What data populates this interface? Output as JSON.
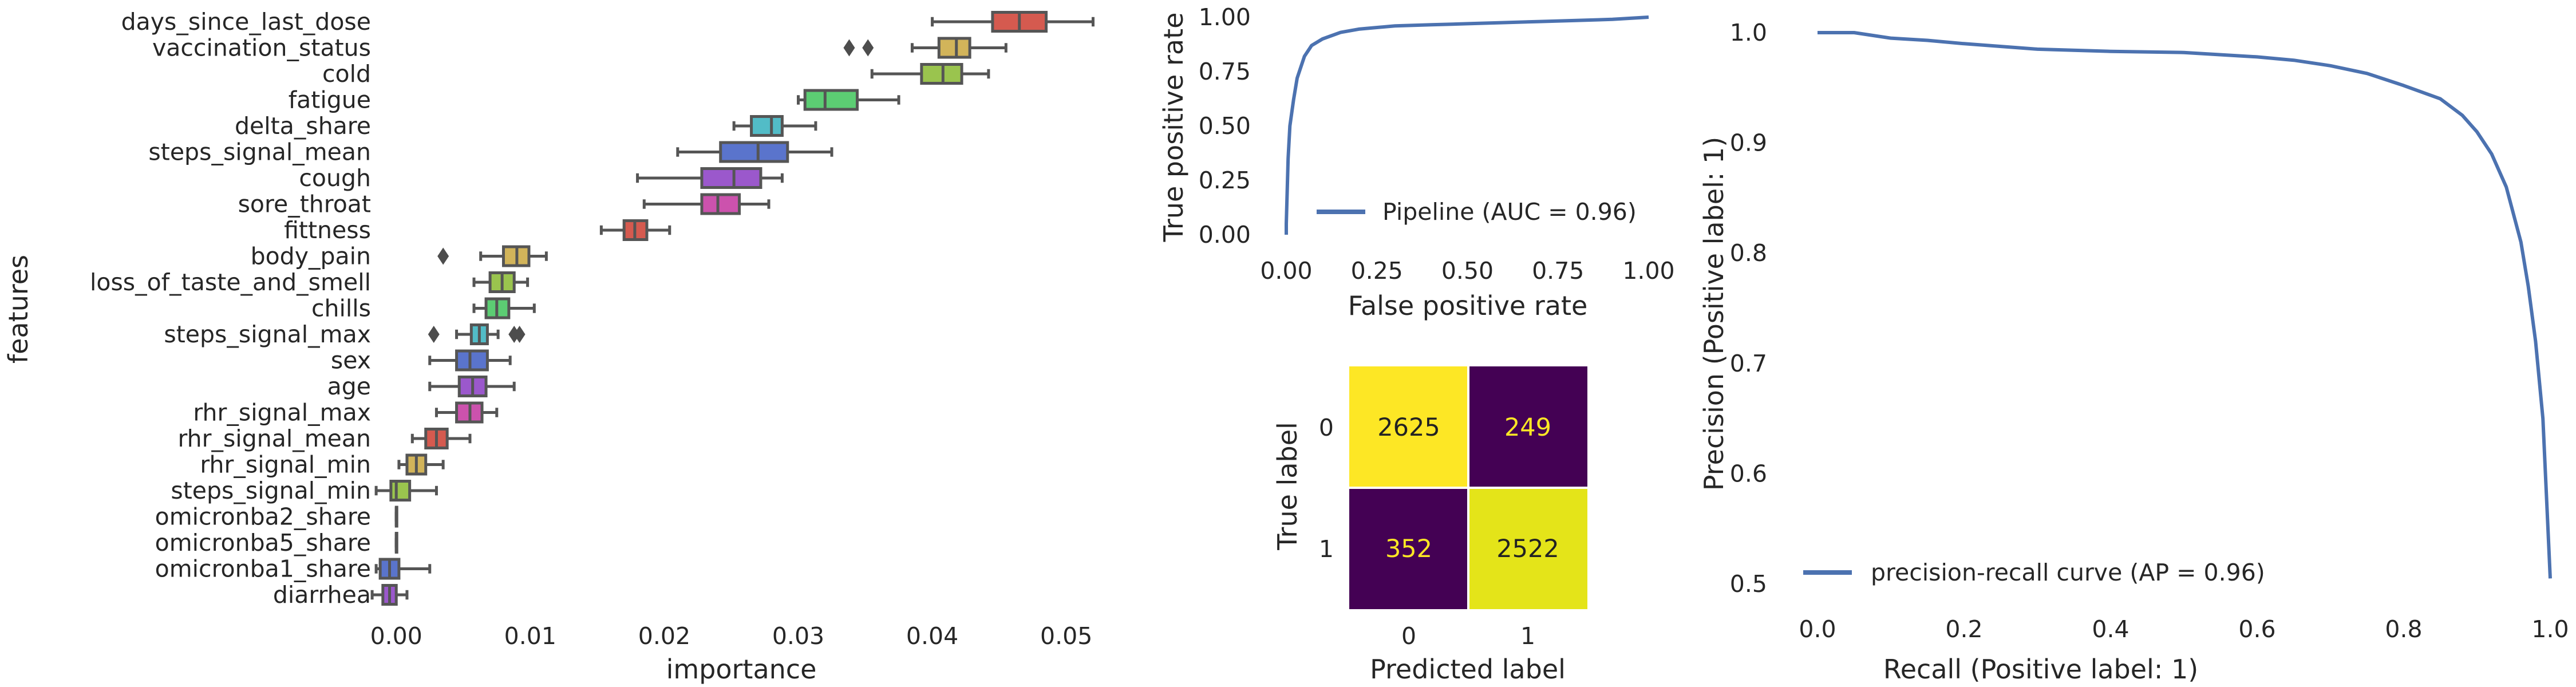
{
  "chart_data": [
    {
      "type": "box",
      "xlabel": "importance",
      "ylabel": "features",
      "xlim": [
        -0.003,
        0.0545
      ],
      "xticks": [
        "0.00",
        "0.01",
        "0.02",
        "0.03",
        "0.04",
        "0.05"
      ],
      "grid": false,
      "categories": [
        "days_since_last_dose",
        "vaccination_status",
        "cold",
        "fatigue",
        "delta_share",
        "steps_signal_mean",
        "cough",
        "sore_throat",
        "fittness",
        "body_pain",
        "loss_of_taste_and_smell",
        "chills",
        "steps_signal_max",
        "sex",
        "age",
        "rhr_signal_max",
        "rhr_signal_mean",
        "rhr_signal_min",
        "steps_signal_min",
        "omicronba2_share",
        "omicronba5_share",
        "omicronba1_share",
        "diarrhea"
      ],
      "boxes": [
        {
          "whislo": 0.04,
          "q1": 0.0445,
          "med": 0.0465,
          "q3": 0.0485,
          "whishi": 0.052,
          "fliers": [],
          "color": "#d55a4f"
        },
        {
          "whislo": 0.0385,
          "q1": 0.0405,
          "med": 0.0418,
          "q3": 0.0428,
          "whishi": 0.0455,
          "fliers": [
            0.0338,
            0.0352
          ],
          "color": "#d2b45a"
        },
        {
          "whislo": 0.0355,
          "q1": 0.0392,
          "med": 0.0408,
          "q3": 0.0422,
          "whishi": 0.0442,
          "fliers": [],
          "color": "#9ac44e"
        },
        {
          "whislo": 0.03,
          "q1": 0.0305,
          "med": 0.032,
          "q3": 0.0344,
          "whishi": 0.0375,
          "fliers": [],
          "color": "#5ccd73"
        },
        {
          "whislo": 0.0252,
          "q1": 0.0265,
          "med": 0.028,
          "q3": 0.0288,
          "whishi": 0.0313,
          "fliers": [],
          "color": "#52bcc7"
        },
        {
          "whislo": 0.021,
          "q1": 0.0242,
          "med": 0.027,
          "q3": 0.0292,
          "whishi": 0.0325,
          "fliers": [],
          "color": "#5a74cc"
        },
        {
          "whislo": 0.018,
          "q1": 0.0228,
          "med": 0.0252,
          "q3": 0.0272,
          "whishi": 0.0288,
          "fliers": [],
          "color": "#9b58cc"
        },
        {
          "whislo": 0.0185,
          "q1": 0.0228,
          "med": 0.024,
          "q3": 0.0256,
          "whishi": 0.0278,
          "fliers": [],
          "color": "#cc52ad"
        },
        {
          "whislo": 0.0153,
          "q1": 0.017,
          "med": 0.0178,
          "q3": 0.0187,
          "whishi": 0.0204,
          "fliers": [],
          "color": "#d55a4f"
        },
        {
          "whislo": 0.0063,
          "q1": 0.008,
          "med": 0.009,
          "q3": 0.0099,
          "whishi": 0.0112,
          "fliers": [
            0.0035
          ],
          "color": "#d2b45a"
        },
        {
          "whislo": 0.0058,
          "q1": 0.007,
          "med": 0.0079,
          "q3": 0.0088,
          "whishi": 0.0098,
          "fliers": [],
          "color": "#9ac44e"
        },
        {
          "whislo": 0.0058,
          "q1": 0.0067,
          "med": 0.0075,
          "q3": 0.0084,
          "whishi": 0.0103,
          "fliers": [],
          "color": "#5ccd73"
        },
        {
          "whislo": 0.0045,
          "q1": 0.0056,
          "med": 0.0062,
          "q3": 0.0068,
          "whishi": 0.0076,
          "fliers": [
            0.0028,
            0.0088,
            0.0092
          ],
          "color": "#52bcc7"
        },
        {
          "whislo": 0.0025,
          "q1": 0.0045,
          "med": 0.0055,
          "q3": 0.0068,
          "whishi": 0.0085,
          "fliers": [],
          "color": "#5a74cc"
        },
        {
          "whislo": 0.0025,
          "q1": 0.0047,
          "med": 0.0057,
          "q3": 0.0067,
          "whishi": 0.0088,
          "fliers": [],
          "color": "#9b58cc"
        },
        {
          "whislo": 0.003,
          "q1": 0.0045,
          "med": 0.0055,
          "q3": 0.0064,
          "whishi": 0.0075,
          "fliers": [],
          "color": "#cc52ad"
        },
        {
          "whislo": 0.0012,
          "q1": 0.0022,
          "med": 0.003,
          "q3": 0.0038,
          "whishi": 0.0055,
          "fliers": [],
          "color": "#d55a4f"
        },
        {
          "whislo": 0.0002,
          "q1": 0.0008,
          "med": 0.0015,
          "q3": 0.0022,
          "whishi": 0.0035,
          "fliers": [],
          "color": "#d2b45a"
        },
        {
          "whislo": -0.0015,
          "q1": -0.0004,
          "med": 0.0,
          "q3": 0.001,
          "whishi": 0.003,
          "fliers": [],
          "color": "#9ac44e"
        },
        {
          "whislo": 0.0,
          "q1": 0.0,
          "med": 0.0,
          "q3": 0.0,
          "whishi": 0.0,
          "fliers": [],
          "color": "#5ccd73"
        },
        {
          "whislo": 0.0,
          "q1": 0.0,
          "med": 0.0,
          "q3": 0.0,
          "whishi": 0.0,
          "fliers": [],
          "color": "#52bcc7"
        },
        {
          "whislo": -0.0015,
          "q1": -0.0012,
          "med": -0.0005,
          "q3": 0.0002,
          "whishi": 0.0025,
          "fliers": [],
          "color": "#5a74cc"
        },
        {
          "whislo": -0.0018,
          "q1": -0.001,
          "med": -0.0005,
          "q3": 0.0,
          "whishi": 0.0008,
          "fliers": [],
          "color": "#9b58cc"
        }
      ]
    },
    {
      "type": "line",
      "xlabel": "False positive rate",
      "ylabel": "True positive rate",
      "xlim": [
        0,
        1
      ],
      "ylim": [
        0,
        1
      ],
      "xticks": [
        "0.00",
        "0.25",
        "0.50",
        "0.75",
        "1.00"
      ],
      "yticks": [
        "0.00",
        "0.25",
        "0.50",
        "0.75",
        "1.00"
      ],
      "legend_position": "bottom-right",
      "series": [
        {
          "name": "Pipeline (AUC = 0.96)",
          "color": "#4c72b0",
          "x": [
            0,
            0,
            0.005,
            0.01,
            0.02,
            0.03,
            0.05,
            0.07,
            0.1,
            0.15,
            0.2,
            0.3,
            0.4,
            0.5,
            0.6,
            0.7,
            0.8,
            0.9,
            0.95,
            1.0
          ],
          "y": [
            0,
            0.05,
            0.35,
            0.5,
            0.62,
            0.72,
            0.82,
            0.87,
            0.9,
            0.93,
            0.945,
            0.96,
            0.965,
            0.97,
            0.975,
            0.98,
            0.985,
            0.99,
            0.995,
            1.0
          ]
        }
      ]
    },
    {
      "type": "heatmap",
      "xlabel": "Predicted label",
      "ylabel": "True label",
      "x_categories": [
        "0",
        "1"
      ],
      "y_categories": [
        "0",
        "1"
      ],
      "values": [
        [
          2625,
          249
        ],
        [
          352,
          2522
        ]
      ],
      "colormap": "viridis",
      "cell_colors": [
        [
          "#fde725",
          "#440154"
        ],
        [
          "#440154",
          "#e4e419"
        ]
      ],
      "text_colors": [
        [
          "#222222",
          "#fde725"
        ],
        [
          "#fde725",
          "#222222"
        ]
      ]
    },
    {
      "type": "line",
      "xlabel": "Recall (Positive label: 1)",
      "ylabel": "Precision (Positive label: 1)",
      "xlim": [
        0,
        1
      ],
      "ylim": [
        0.5,
        1
      ],
      "xticks": [
        "0.0",
        "0.2",
        "0.4",
        "0.6",
        "0.8",
        "1.0"
      ],
      "yticks": [
        "0.5",
        "0.6",
        "0.7",
        "0.8",
        "0.9",
        "1.0"
      ],
      "legend_position": "bottom-left",
      "series": [
        {
          "name": "precision-recall curve (AP = 0.96)",
          "color": "#4c72b0",
          "x": [
            0,
            0.05,
            0.1,
            0.15,
            0.2,
            0.3,
            0.4,
            0.5,
            0.6,
            0.65,
            0.7,
            0.75,
            0.8,
            0.85,
            0.88,
            0.9,
            0.92,
            0.94,
            0.96,
            0.97,
            0.98,
            0.99,
            1.0
          ],
          "y": [
            1.0,
            1.0,
            0.995,
            0.993,
            0.99,
            0.985,
            0.983,
            0.982,
            0.978,
            0.975,
            0.97,
            0.963,
            0.952,
            0.94,
            0.925,
            0.91,
            0.89,
            0.86,
            0.81,
            0.77,
            0.72,
            0.65,
            0.505
          ]
        }
      ]
    }
  ]
}
